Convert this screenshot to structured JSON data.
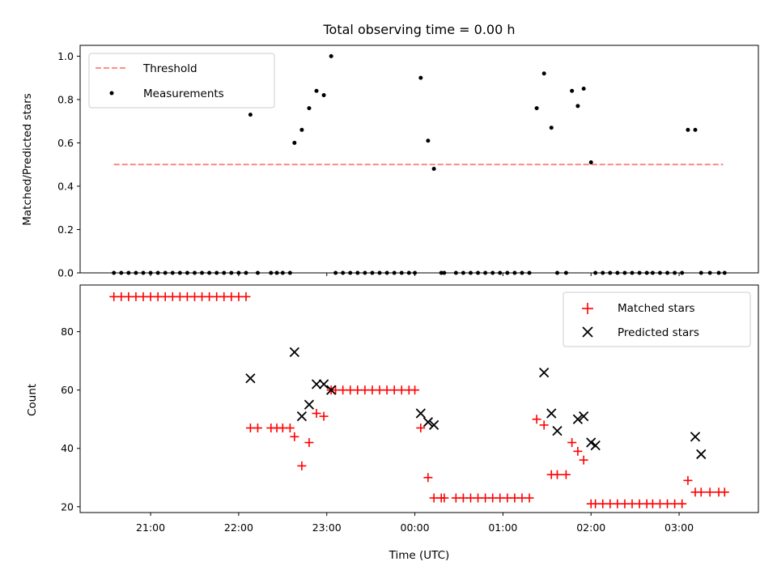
{
  "chart_data": [
    {
      "type": "scatter",
      "title": "Total observing time = 0.00 h",
      "ylabel": "Matched/Predicted stars",
      "xlabel": "",
      "xlim": [
        "20:12",
        "03:54"
      ],
      "ylim": [
        0,
        1.05
      ],
      "yticks": [
        "0.0",
        "0.2",
        "0.4",
        "0.6",
        "0.8",
        "1.0"
      ],
      "grid": false,
      "legend_position": "top-left",
      "series": [
        {
          "name": "Threshold",
          "style": "dashed-line",
          "color": "#ff7f7f",
          "x": [
            "20:35",
            "03:30"
          ],
          "y": [
            0.5,
            0.5
          ]
        },
        {
          "name": "Measurements",
          "style": "dot",
          "color": "#000000",
          "x": [
            "20:35",
            "20:40",
            "20:45",
            "20:50",
            "20:55",
            "21:00",
            "21:05",
            "21:10",
            "21:15",
            "21:20",
            "21:25",
            "21:30",
            "21:35",
            "21:40",
            "21:45",
            "21:50",
            "21:55",
            "22:00",
            "22:05",
            "22:08",
            "22:13",
            "22:22",
            "22:26",
            "22:30",
            "22:35",
            "22:38",
            "22:43",
            "22:48",
            "22:53",
            "22:58",
            "23:03",
            "23:06",
            "23:11",
            "23:16",
            "23:21",
            "23:26",
            "23:31",
            "23:36",
            "23:41",
            "23:46",
            "23:51",
            "23:56",
            "00:00",
            "00:04",
            "00:09",
            "00:13",
            "00:18",
            "00:20",
            "00:28",
            "00:33",
            "00:38",
            "00:43",
            "00:48",
            "00:53",
            "00:58",
            "01:03",
            "01:08",
            "01:13",
            "01:18",
            "01:23",
            "01:28",
            "01:33",
            "01:37",
            "01:43",
            "01:47",
            "01:51",
            "01:55",
            "02:00",
            "02:03",
            "02:08",
            "02:13",
            "02:18",
            "02:23",
            "02:28",
            "02:33",
            "02:38",
            "02:42",
            "02:47",
            "02:52",
            "02:57",
            "03:02",
            "03:06",
            "03:11",
            "03:15",
            "03:21",
            "03:27",
            "03:31"
          ],
          "y": [
            0,
            0,
            0,
            0,
            0,
            0,
            0,
            0,
            0,
            0,
            0,
            0,
            0,
            0,
            0,
            0,
            0,
            0,
            0,
            0.73,
            0,
            0,
            0,
            0,
            0,
            0.6,
            0.66,
            0.76,
            0.84,
            0.82,
            1.0,
            0,
            0,
            0,
            0,
            0,
            0,
            0,
            0,
            0,
            0,
            0,
            0,
            0.9,
            0.61,
            0.48,
            0,
            0,
            0,
            0,
            0,
            0,
            0,
            0,
            0,
            0,
            0,
            0,
            0,
            0.76,
            0.92,
            0.67,
            0,
            0,
            0.84,
            0.77,
            0.85,
            0.51,
            0,
            0,
            0,
            0,
            0,
            0,
            0,
            0,
            0,
            0,
            0,
            0,
            0,
            0.66,
            0.66,
            0,
            0,
            0,
            0
          ]
        }
      ]
    },
    {
      "type": "scatter",
      "title": "",
      "xlabel": "Time (UTC)",
      "ylabel": "Count",
      "xlim": [
        "20:12",
        "03:54"
      ],
      "ylim": [
        18,
        96
      ],
      "yticks": [
        "20",
        "40",
        "60",
        "80"
      ],
      "xticks": [
        "21:00",
        "22:00",
        "23:00",
        "00:00",
        "01:00",
        "02:00",
        "03:00"
      ],
      "grid": false,
      "legend_position": "top-right",
      "series": [
        {
          "name": "Matched stars",
          "marker": "plus",
          "color": "#ff0000",
          "x": [
            "20:35",
            "20:40",
            "20:45",
            "20:50",
            "20:55",
            "21:00",
            "21:05",
            "21:10",
            "21:15",
            "21:20",
            "21:25",
            "21:30",
            "21:35",
            "21:40",
            "21:45",
            "21:50",
            "21:55",
            "22:00",
            "22:05",
            "22:08",
            "22:13",
            "22:22",
            "22:26",
            "22:30",
            "22:35",
            "22:38",
            "22:43",
            "22:48",
            "22:53",
            "22:58",
            "23:03",
            "23:06",
            "23:11",
            "23:16",
            "23:21",
            "23:26",
            "23:31",
            "23:36",
            "23:41",
            "23:46",
            "23:51",
            "23:56",
            "00:00",
            "00:04",
            "00:09",
            "00:13",
            "00:18",
            "00:20",
            "00:28",
            "00:33",
            "00:38",
            "00:43",
            "00:48",
            "00:53",
            "00:58",
            "01:03",
            "01:08",
            "01:13",
            "01:18",
            "01:23",
            "01:28",
            "01:33",
            "01:37",
            "01:43",
            "01:47",
            "01:51",
            "01:55",
            "02:00",
            "02:03",
            "02:08",
            "02:13",
            "02:18",
            "02:23",
            "02:28",
            "02:33",
            "02:38",
            "02:42",
            "02:47",
            "02:52",
            "02:57",
            "03:02",
            "03:06",
            "03:11",
            "03:15",
            "03:21",
            "03:27",
            "03:31"
          ],
          "y": [
            92,
            92,
            92,
            92,
            92,
            92,
            92,
            92,
            92,
            92,
            92,
            92,
            92,
            92,
            92,
            92,
            92,
            92,
            92,
            47,
            47,
            47,
            47,
            47,
            47,
            44,
            34,
            42,
            52,
            51,
            60,
            60,
            60,
            60,
            60,
            60,
            60,
            60,
            60,
            60,
            60,
            60,
            60,
            47,
            30,
            23,
            23,
            23,
            23,
            23,
            23,
            23,
            23,
            23,
            23,
            23,
            23,
            23,
            23,
            50,
            48,
            31,
            31,
            31,
            42,
            39,
            36,
            21,
            21,
            21,
            21,
            21,
            21,
            21,
            21,
            21,
            21,
            21,
            21,
            21,
            21,
            29,
            25,
            25,
            25,
            25,
            25
          ]
        },
        {
          "name": "Predicted stars",
          "marker": "x",
          "color": "#000000",
          "x": [
            "22:08",
            "22:38",
            "22:43",
            "22:48",
            "22:53",
            "22:58",
            "23:03",
            "00:04",
            "00:09",
            "00:13",
            "01:28",
            "01:33",
            "01:37",
            "01:51",
            "01:55",
            "02:00",
            "02:03",
            "03:11",
            "03:15"
          ],
          "y": [
            64,
            73,
            51,
            55,
            62,
            62,
            60,
            52,
            49,
            48,
            66,
            52,
            46,
            50,
            51,
            42,
            41,
            44,
            38
          ]
        }
      ]
    }
  ]
}
